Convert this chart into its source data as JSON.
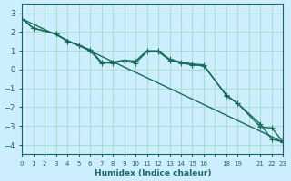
{
  "xlabel": "Humidex (Indice chaleur)",
  "ylabel": "",
  "bg_color": "#cceeff",
  "line_color": "#1a6b5a",
  "grid_color": "#aaddcc",
  "xlim": [
    0,
    23
  ],
  "ylim": [
    -4.5,
    3.5
  ],
  "yticks": [
    -4,
    -3,
    -2,
    -1,
    0,
    1,
    2,
    3
  ],
  "xtick_positions": [
    0,
    1,
    2,
    3,
    4,
    5,
    6,
    7,
    8,
    9,
    10,
    11,
    12,
    13,
    14,
    15,
    16,
    17,
    18,
    19,
    20,
    21,
    22,
    23
  ],
  "xtick_labels": [
    "0",
    "1",
    "2",
    "3",
    "4",
    "5",
    "6",
    "7",
    "8",
    "9",
    "10",
    "11",
    "12",
    "13",
    "14",
    "15",
    "16",
    "",
    "18",
    "19",
    "",
    "21",
    "22",
    "23"
  ],
  "line1_x": [
    0,
    1,
    3,
    4,
    5,
    6,
    7,
    8,
    9,
    10,
    11,
    12,
    13,
    14,
    15,
    16,
    18,
    19,
    21,
    22,
    23
  ],
  "line1_y": [
    2.7,
    2.2,
    1.9,
    1.5,
    1.3,
    1.0,
    0.35,
    0.35,
    0.45,
    0.35,
    0.95,
    0.95,
    0.5,
    0.35,
    0.25,
    0.2,
    -1.35,
    -1.8,
    -2.9,
    -3.7,
    -3.85
  ],
  "line2_x": [
    0,
    1,
    3,
    4,
    5,
    6,
    7,
    8,
    9,
    10,
    11,
    12,
    13,
    14,
    15,
    16,
    18,
    19,
    21,
    22,
    23
  ],
  "line2_y": [
    2.7,
    2.2,
    1.9,
    1.5,
    1.3,
    1.05,
    0.4,
    0.4,
    0.5,
    0.45,
    1.0,
    1.0,
    0.55,
    0.4,
    0.3,
    0.25,
    -1.4,
    -1.8,
    -3.05,
    -3.1,
    -3.85
  ],
  "line3_x": [
    0,
    23
  ],
  "line3_y": [
    2.7,
    -3.85
  ],
  "marker_size": 5,
  "linewidth": 1.0
}
